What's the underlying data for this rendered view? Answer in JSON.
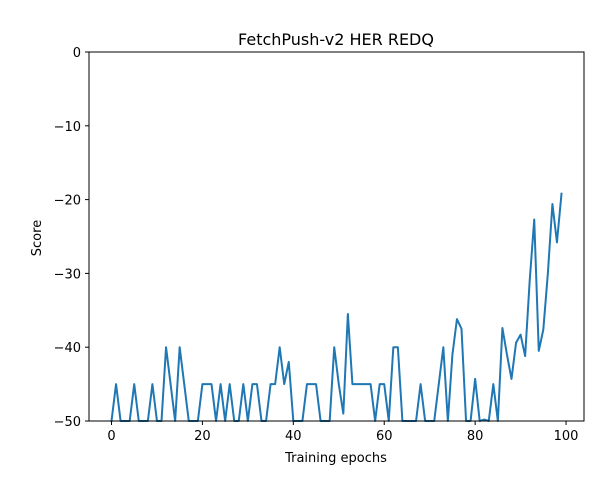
{
  "chart_data": {
    "type": "line",
    "title": "FetchPush-v2 HER REDQ",
    "xlabel": "Training epochs",
    "ylabel": "Score",
    "xlim": [
      -4.95,
      103.95
    ],
    "ylim": [
      -50,
      0
    ],
    "xticks": [
      0,
      20,
      40,
      60,
      80,
      100
    ],
    "yticks": [
      -50,
      -40,
      -30,
      -20,
      -10,
      0
    ],
    "grid": false,
    "series": [
      {
        "color": "#1f77b4",
        "x": [
          0,
          1,
          2,
          3,
          4,
          5,
          6,
          7,
          8,
          9,
          10,
          11,
          12,
          13,
          14,
          15,
          16,
          17,
          18,
          19,
          20,
          21,
          22,
          23,
          24,
          25,
          26,
          27,
          28,
          29,
          30,
          31,
          32,
          33,
          34,
          35,
          36,
          37,
          38,
          39,
          40,
          41,
          42,
          43,
          44,
          45,
          46,
          47,
          48,
          49,
          50,
          51,
          52,
          53,
          54,
          55,
          56,
          57,
          58,
          59,
          60,
          61,
          62,
          63,
          64,
          65,
          66,
          67,
          68,
          69,
          70,
          71,
          72,
          73,
          74,
          75,
          76,
          77,
          78,
          79,
          80,
          81,
          82,
          83,
          84,
          85,
          86,
          87,
          88,
          89,
          90,
          91,
          92,
          93,
          94,
          95,
          96,
          97,
          98,
          99
        ],
        "values": [
          -50,
          -45,
          -50,
          -50,
          -50,
          -45,
          -50,
          -50,
          -50,
          -45,
          -50,
          -50,
          -40,
          -45,
          -50,
          -40,
          -45,
          -50,
          -50,
          -50,
          -45,
          -45,
          -45,
          -50,
          -45,
          -50,
          -45,
          -50,
          -50,
          -45,
          -50,
          -45,
          -45,
          -50,
          -50,
          -45,
          -45,
          -40,
          -45,
          -42,
          -50,
          -50,
          -50,
          -45,
          -45,
          -45,
          -50,
          -50,
          -50,
          -40,
          -45,
          -49,
          -35.5,
          -45,
          -45,
          -45,
          -45,
          -45,
          -50,
          -45,
          -45,
          -50,
          -40,
          -40,
          -50,
          -50,
          -50,
          -50,
          -45,
          -50,
          -50,
          -50,
          -45,
          -40,
          -50,
          -41,
          -36.2,
          -37.5,
          -50,
          -50,
          -44.3,
          -50,
          -49.8,
          -50,
          -45,
          -50,
          -37.4,
          -41,
          -44.3,
          -39.4,
          -38.3,
          -41.2,
          -31,
          -22.7,
          -40.5,
          -37.6,
          -30,
          -20.6,
          -25.8,
          -19.2
        ]
      }
    ]
  }
}
